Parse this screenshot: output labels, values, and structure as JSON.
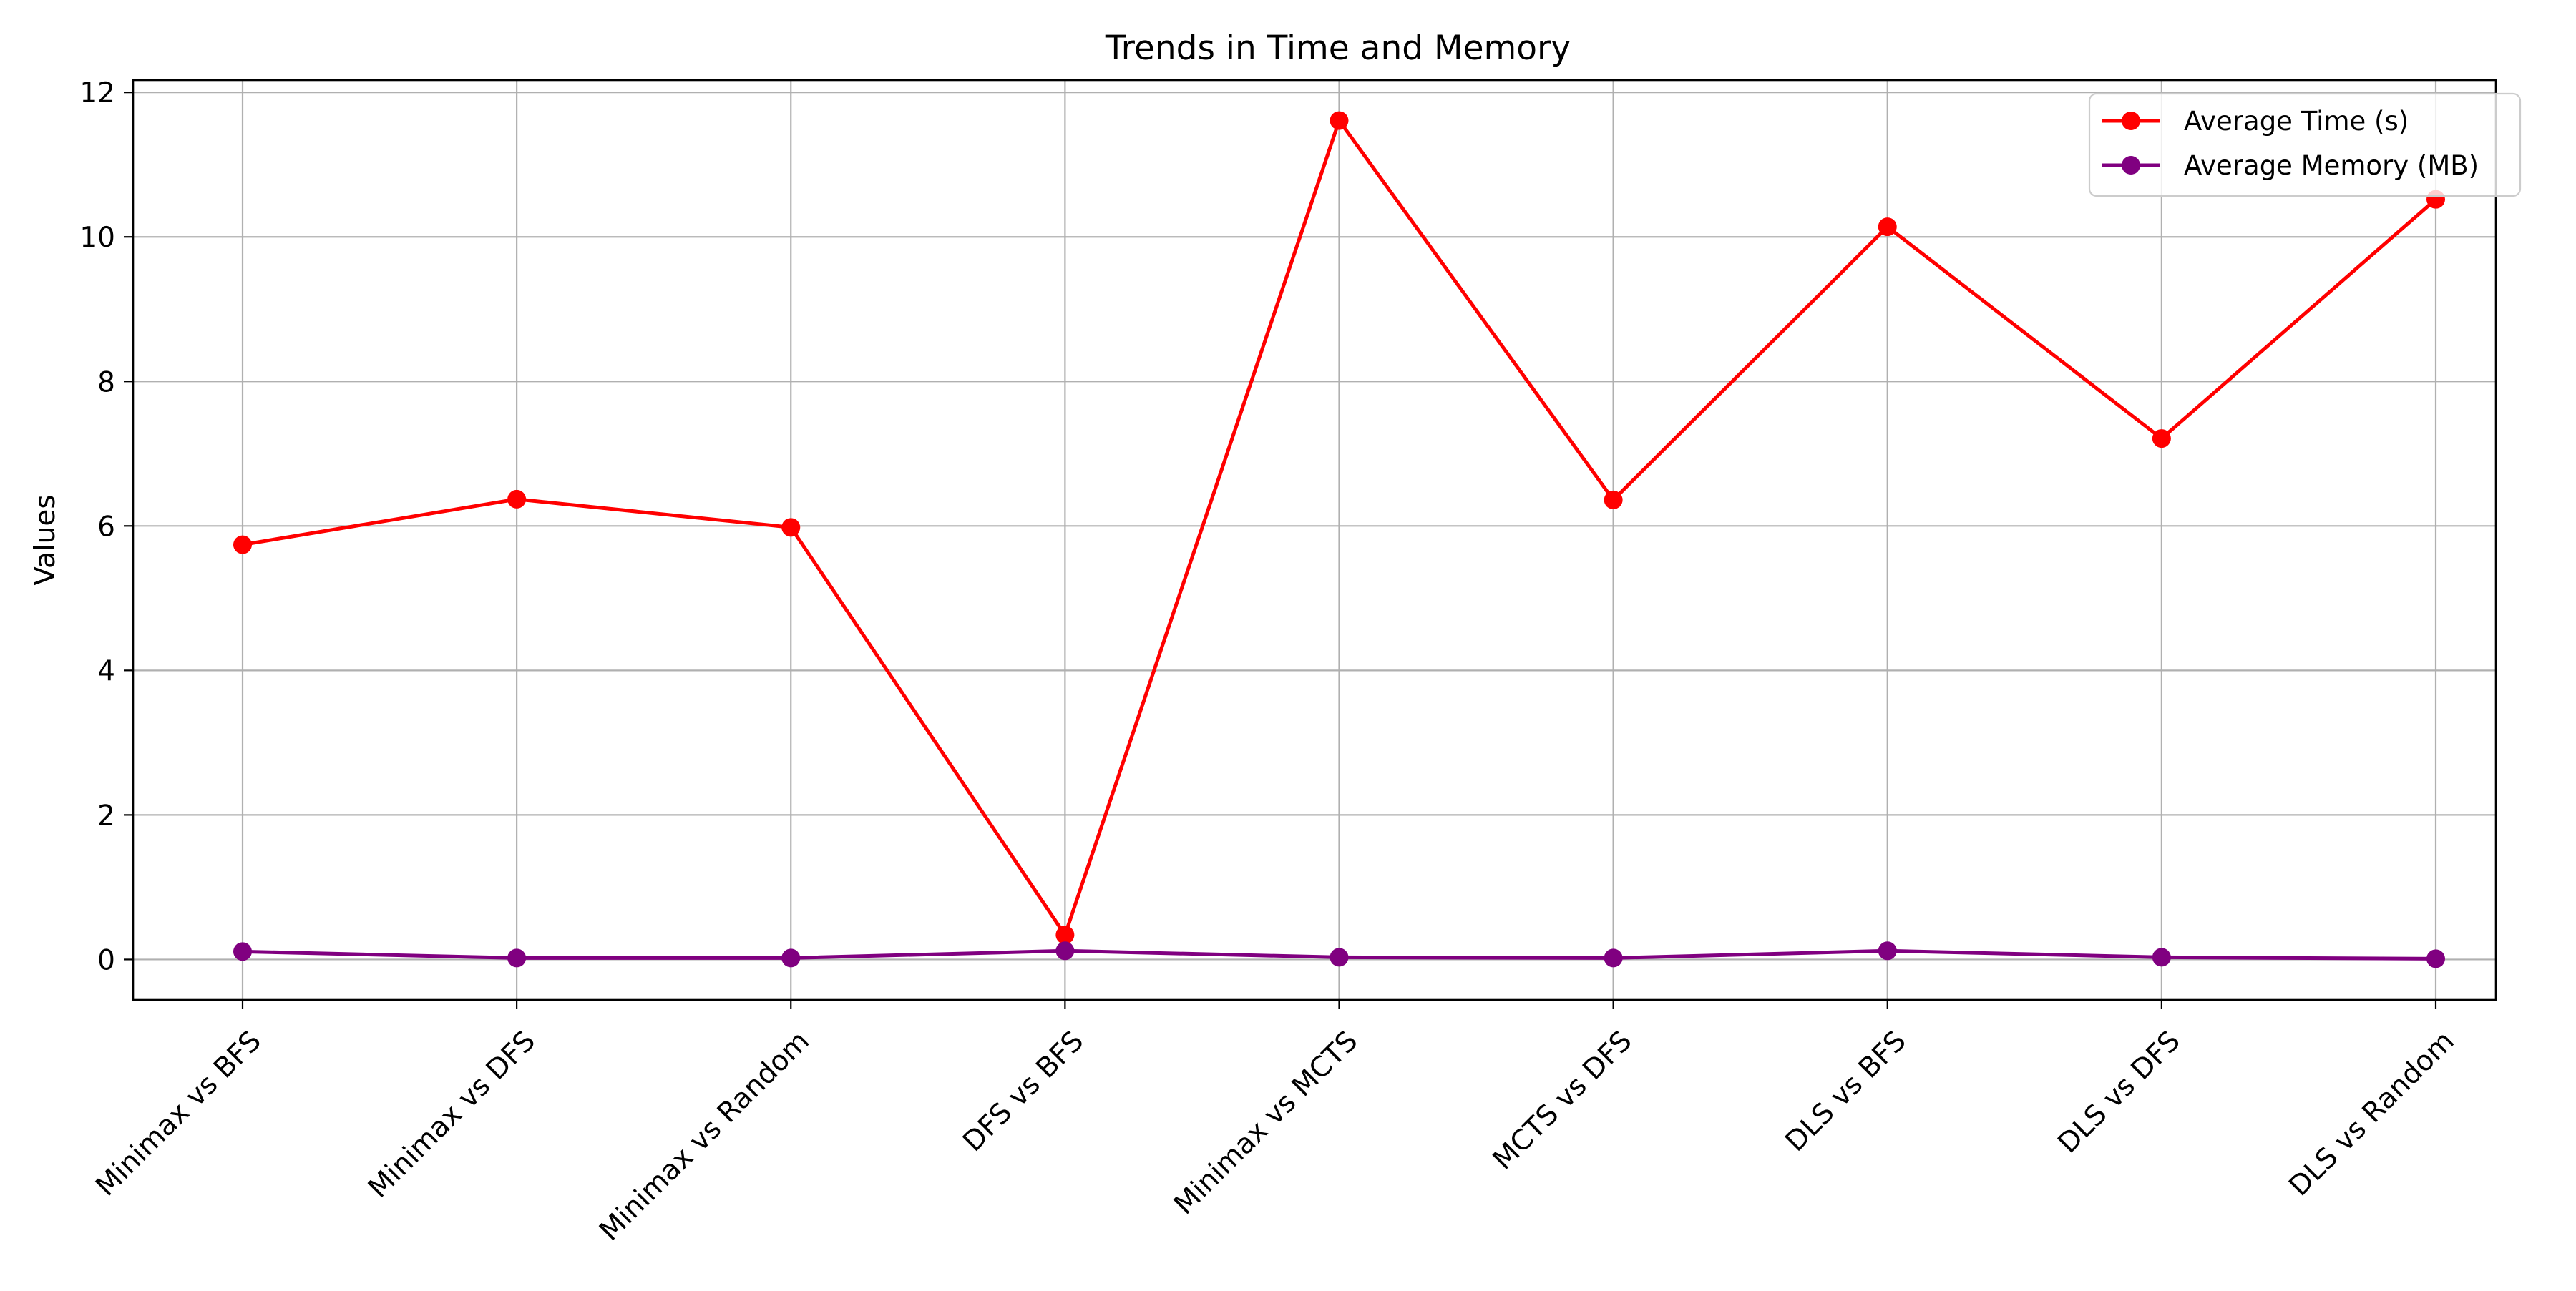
{
  "chart_data": {
    "type": "line",
    "title": "Trends in Time and Memory",
    "xlabel": "",
    "ylabel": "Values",
    "categories": [
      "Minimax vs BFS",
      "Minimax vs DFS",
      "Minimax vs Random",
      "DFS vs BFS",
      "Minimax vs MCTS",
      "MCTS vs DFS",
      "DLS vs BFS",
      "DLS vs DFS",
      "DLS vs Random"
    ],
    "series": [
      {
        "name": "Average Time (s)",
        "color": "#ff0000",
        "marker": "circle",
        "values": [
          5.74,
          6.37,
          5.98,
          0.34,
          11.61,
          6.36,
          10.14,
          7.21,
          10.52
        ]
      },
      {
        "name": "Average Memory (MB)",
        "color": "#800080",
        "marker": "circle",
        "values": [
          0.11,
          0.02,
          0.02,
          0.12,
          0.03,
          0.02,
          0.12,
          0.03,
          0.01
        ]
      }
    ],
    "yticks": [
      0,
      2,
      4,
      6,
      8,
      10,
      12
    ],
    "ylim": [
      -0.56,
      12.17
    ],
    "grid": true,
    "legend_position": "top-right"
  }
}
